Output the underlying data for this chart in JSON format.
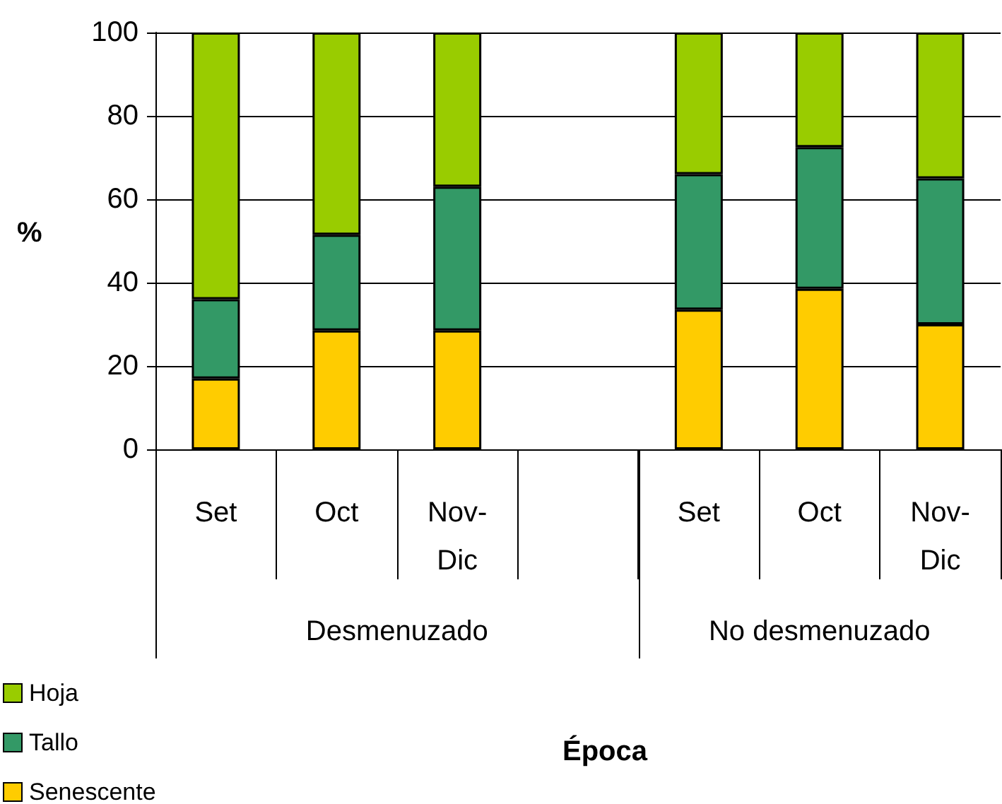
{
  "chart_data": {
    "type": "bar",
    "stacked": true,
    "ylabel": "%",
    "categories": [
      "Set",
      "Oct",
      "Nov-Dic",
      null,
      "Set",
      "Oct",
      "Nov-Dic"
    ],
    "annotations": [
      "Desmenuzado",
      "No desmenuzado",
      "Época"
    ],
    "series": [
      {
        "name": "Senescente",
        "color": "#ffcc00",
        "values": [
          17,
          28.5,
          28.5,
          null,
          33.5,
          38.5,
          30
        ]
      },
      {
        "name": "Tallo",
        "color": "#339966",
        "values": [
          19,
          23,
          34.5,
          null,
          32.5,
          34,
          35
        ]
      },
      {
        "name": "Hoja",
        "color": "#99cc00",
        "values": [
          64,
          48.5,
          37,
          null,
          34,
          27.5,
          35
        ]
      }
    ],
    "ylim": [
      0,
      100
    ],
    "yticks": [
      0,
      20,
      40,
      60,
      80,
      100
    ],
    "grid": "y",
    "legend": "bottom left"
  }
}
